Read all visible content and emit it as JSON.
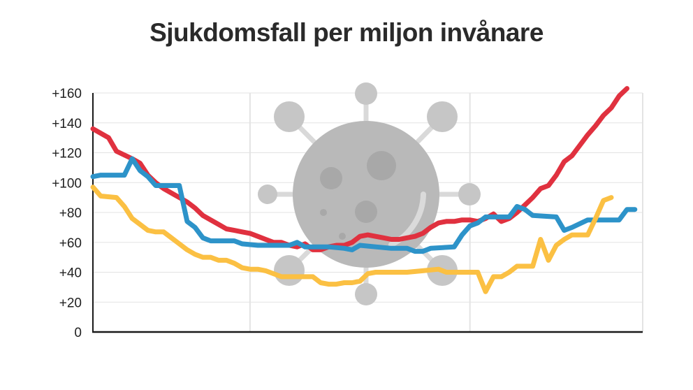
{
  "chart_data": {
    "type": "line",
    "title": "Sjukdomsfall per miljon invånare",
    "xlabel": "",
    "ylabel": "",
    "xlim": [
      0,
      70
    ],
    "ylim": [
      0,
      160
    ],
    "y_ticks": [
      {
        "value": 0,
        "label": "0"
      },
      {
        "value": 20,
        "label": "+20"
      },
      {
        "value": 40,
        "label": "+40"
      },
      {
        "value": 60,
        "label": "+60"
      },
      {
        "value": 80,
        "label": "+80"
      },
      {
        "value": 100,
        "label": "+100"
      },
      {
        "value": 120,
        "label": "+120"
      },
      {
        "value": 140,
        "label": "+140"
      },
      {
        "value": 160,
        "label": "+160"
      }
    ],
    "grid": true,
    "legend": "none",
    "background_icon": "virus-icon",
    "series": [
      {
        "color": "#e0313f",
        "points": [
          [
            0,
            136
          ],
          [
            2,
            130
          ],
          [
            3,
            121
          ],
          [
            5,
            116
          ],
          [
            6,
            113
          ],
          [
            7,
            105
          ],
          [
            8,
            100
          ],
          [
            9,
            96
          ],
          [
            10,
            93
          ],
          [
            11,
            90
          ],
          [
            12,
            87
          ],
          [
            13,
            83
          ],
          [
            14,
            78
          ],
          [
            15,
            75
          ],
          [
            16,
            72
          ],
          [
            17,
            69
          ],
          [
            18,
            68
          ],
          [
            19,
            67
          ],
          [
            20,
            66
          ],
          [
            21,
            64
          ],
          [
            22,
            62
          ],
          [
            23,
            60
          ],
          [
            24,
            60
          ],
          [
            25,
            58
          ],
          [
            26,
            57
          ],
          [
            27,
            59
          ],
          [
            28,
            55
          ],
          [
            29,
            55
          ],
          [
            30,
            57
          ],
          [
            31,
            58
          ],
          [
            32,
            58
          ],
          [
            33,
            60
          ],
          [
            34,
            64
          ],
          [
            35,
            65
          ],
          [
            36,
            64
          ],
          [
            37,
            63
          ],
          [
            38,
            62
          ],
          [
            39,
            62
          ],
          [
            40,
            63
          ],
          [
            41,
            64
          ],
          [
            42,
            66
          ],
          [
            43,
            70
          ],
          [
            44,
            73
          ],
          [
            45,
            74
          ],
          [
            46,
            74
          ],
          [
            47,
            75
          ],
          [
            48,
            75
          ],
          [
            49,
            74
          ],
          [
            50,
            76
          ],
          [
            51,
            79
          ],
          [
            52,
            74
          ],
          [
            53,
            76
          ],
          [
            54,
            80
          ],
          [
            55,
            85
          ],
          [
            56,
            90
          ],
          [
            57,
            96
          ],
          [
            58,
            98
          ],
          [
            59,
            105
          ],
          [
            60,
            114
          ],
          [
            61,
            118
          ],
          [
            62,
            125
          ],
          [
            63,
            132
          ],
          [
            64,
            138
          ],
          [
            65,
            145
          ],
          [
            66,
            150
          ],
          [
            67,
            158
          ],
          [
            68,
            163
          ]
        ]
      },
      {
        "color": "#2d93c9",
        "points": [
          [
            0,
            104
          ],
          [
            1,
            105
          ],
          [
            4,
            105
          ],
          [
            5,
            116
          ],
          [
            6,
            108
          ],
          [
            7,
            104
          ],
          [
            8,
            98
          ],
          [
            11,
            98
          ],
          [
            12,
            74
          ],
          [
            13,
            70
          ],
          [
            14,
            63
          ],
          [
            15,
            61
          ],
          [
            18,
            61
          ],
          [
            19,
            59
          ],
          [
            21,
            58
          ],
          [
            25,
            58
          ],
          [
            26,
            60
          ],
          [
            27,
            57
          ],
          [
            30,
            57
          ],
          [
            32,
            56
          ],
          [
            33,
            55
          ],
          [
            34,
            58
          ],
          [
            36,
            57
          ],
          [
            38,
            56
          ],
          [
            40,
            56
          ],
          [
            41,
            54
          ],
          [
            42,
            54
          ],
          [
            43,
            56
          ],
          [
            46,
            57
          ],
          [
            47,
            65
          ],
          [
            48,
            71
          ],
          [
            49,
            73
          ],
          [
            50,
            77
          ],
          [
            53,
            77
          ],
          [
            54,
            84
          ],
          [
            55,
            82
          ],
          [
            56,
            78
          ],
          [
            59,
            77
          ],
          [
            60,
            68
          ],
          [
            61,
            70
          ],
          [
            63,
            75
          ],
          [
            67,
            75
          ],
          [
            68,
            82
          ],
          [
            69,
            82
          ]
        ]
      },
      {
        "color": "#fbc043",
        "points": [
          [
            0,
            97
          ],
          [
            1,
            91
          ],
          [
            3,
            90
          ],
          [
            4,
            84
          ],
          [
            5,
            76
          ],
          [
            6,
            72
          ],
          [
            7,
            68
          ],
          [
            8,
            67
          ],
          [
            9,
            67
          ],
          [
            10,
            63
          ],
          [
            11,
            59
          ],
          [
            12,
            55
          ],
          [
            13,
            52
          ],
          [
            14,
            50
          ],
          [
            15,
            50
          ],
          [
            16,
            48
          ],
          [
            17,
            48
          ],
          [
            18,
            46
          ],
          [
            19,
            43
          ],
          [
            20,
            42
          ],
          [
            21,
            42
          ],
          [
            22,
            41
          ],
          [
            23,
            39
          ],
          [
            24,
            37
          ],
          [
            25,
            37
          ],
          [
            26,
            37
          ],
          [
            27,
            37
          ],
          [
            28,
            37
          ],
          [
            29,
            33
          ],
          [
            30,
            32
          ],
          [
            31,
            32
          ],
          [
            32,
            33
          ],
          [
            33,
            33
          ],
          [
            34,
            34
          ],
          [
            35,
            39
          ],
          [
            36,
            40
          ],
          [
            38,
            40
          ],
          [
            40,
            40
          ],
          [
            42,
            41
          ],
          [
            44,
            42
          ],
          [
            45,
            40
          ],
          [
            46,
            40
          ],
          [
            47,
            40
          ],
          [
            48,
            40
          ],
          [
            49,
            40
          ],
          [
            50,
            27
          ],
          [
            51,
            37
          ],
          [
            52,
            37
          ],
          [
            53,
            40
          ],
          [
            54,
            44
          ],
          [
            56,
            44
          ],
          [
            57,
            62
          ],
          [
            58,
            48
          ],
          [
            59,
            58
          ],
          [
            60,
            62
          ],
          [
            61,
            65
          ],
          [
            63,
            65
          ],
          [
            64,
            76
          ],
          [
            65,
            88
          ],
          [
            66,
            90
          ]
        ]
      }
    ]
  }
}
